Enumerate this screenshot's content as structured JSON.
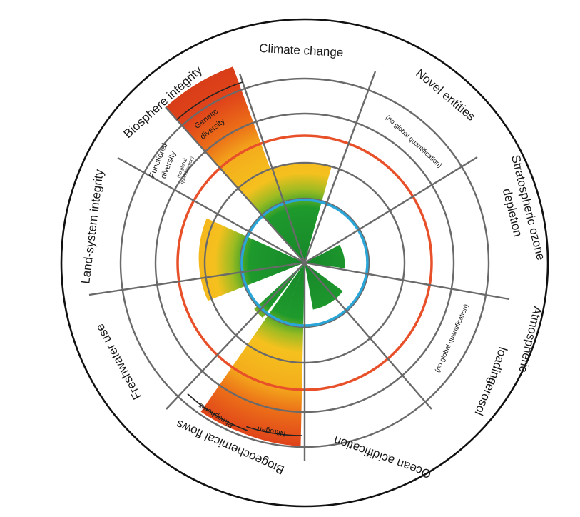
{
  "diagram": {
    "outer_labels": {
      "climate": "Climate change",
      "novel": "Novel entities",
      "strat_line1": "Stratospheric ozone",
      "strat_line2": "depletion",
      "aero_line1": "Atmospheric",
      "aero_line2": "aerosol",
      "aero_line3": "loading",
      "ocean": "Ocean acidification",
      "biogeo": "Biogeochemical flows",
      "fresh": "Freshwater use",
      "land": "Land-system integrity",
      "biosphere": "Biosphere integrity"
    },
    "inner_labels": {
      "novel_note": "(no global quantification)",
      "aero_note": "(no global quantification)",
      "genetic_line1": "Genetic",
      "genetic_line2": "diversity",
      "functional_line1": "Functional",
      "functional_line2": "diversity",
      "functional_note_line1": "(no global",
      "functional_note_line2": "quantification)",
      "phosphorus": "Phosphorus",
      "nitrogen": "Nitrogen"
    },
    "colors": {
      "safe": "#1a8a2a",
      "increasing_risk": "#f4b21a",
      "high_risk": "#e24a16",
      "safe_boundary": "#2aa5d8",
      "high_risk_boundary": "#e8502a",
      "grid": "#6a6a6a"
    }
  }
}
